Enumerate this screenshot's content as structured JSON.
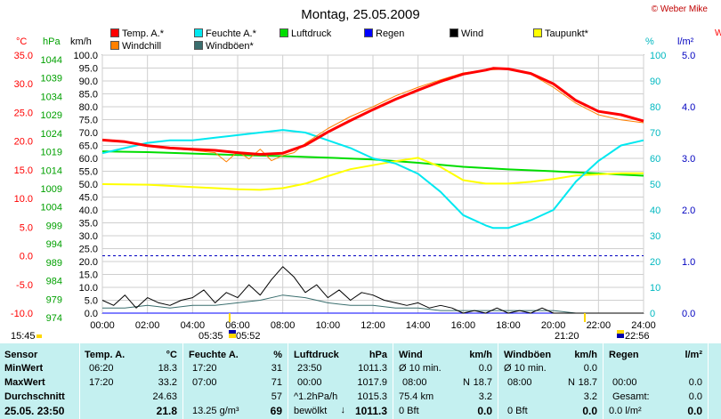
{
  "title": "Montag, 25.05.2009",
  "copyright": "© Weber Mike",
  "top_right_fragment": "W",
  "axis_units": {
    "temp": "°C",
    "pressure": "hPa",
    "wind": "km/h",
    "humidity": "%",
    "rain": "l/m²"
  },
  "legend": [
    {
      "label": "Temp. A.*",
      "color": "#ff0000"
    },
    {
      "label": "Feuchte A.*",
      "color": "#00e8f0"
    },
    {
      "label": "Luftdruck",
      "color": "#00dd00"
    },
    {
      "label": "Regen",
      "color": "#0000ff"
    },
    {
      "label": "Wind",
      "color": "#000000"
    },
    {
      "label": "Taupunkt*",
      "color": "#ffff00"
    },
    {
      "label": "Windchill",
      "color": "#ff8000"
    },
    {
      "label": "Windböen*",
      "color": "#3a6e6e"
    }
  ],
  "chart_data": {
    "type": "line",
    "title": "Montag, 25.05.2009",
    "x_unit": "time",
    "x_ticks": [
      "00:00",
      "02:00",
      "04:00",
      "06:00",
      "08:00",
      "10:00",
      "12:00",
      "14:00",
      "16:00",
      "18:00",
      "20:00",
      "22:00",
      "24:00"
    ],
    "y_axes": {
      "temp": {
        "unit": "°C",
        "range": [
          -10,
          35
        ],
        "ticks": [
          "35.0",
          "30.0",
          "25.0",
          "20.0",
          "15.0",
          "10.0",
          "5.0",
          "0.0",
          "-5.0",
          "-10.0"
        ]
      },
      "pressure": {
        "unit": "hPa",
        "range": [
          974,
          1044
        ],
        "ticks": [
          "1044",
          "1039",
          "1034",
          "1029",
          "1024",
          "1019",
          "1014",
          "1009",
          "1004",
          "999",
          "994",
          "989",
          "984",
          "979",
          "974"
        ]
      },
      "wind": {
        "unit": "km/h",
        "range": [
          0,
          100
        ],
        "ticks": [
          "100.0",
          "95.0",
          "90.0",
          "85.0",
          "80.0",
          "75.0",
          "70.0",
          "65.0",
          "60.0",
          "55.0",
          "50.0",
          "45.0",
          "40.0",
          "35.0",
          "30.0",
          "25.0",
          "20.0",
          "15.0",
          "10.0",
          "5.0",
          "0.0"
        ]
      },
      "humidity": {
        "unit": "%",
        "range": [
          0,
          100
        ],
        "ticks": [
          "100",
          "90",
          "80",
          "70",
          "60",
          "50",
          "40",
          "30",
          "20",
          "10",
          "0"
        ]
      },
      "rain": {
        "unit": "l/m²",
        "range": [
          0,
          5
        ],
        "ticks": [
          "5.0",
          "4.0",
          "3.0",
          "2.0",
          "1.0",
          "0.0"
        ]
      }
    },
    "grid": true,
    "series": [
      {
        "name": "Temp. A.*",
        "axis": "temp",
        "color": "#ff0000",
        "x": [
          0,
          1,
          2,
          3,
          4,
          5,
          6,
          7,
          8,
          9,
          10,
          11,
          12,
          13,
          14,
          15,
          16,
          17,
          17.33,
          18,
          19,
          20,
          21,
          22,
          23,
          24
        ],
        "y": [
          20.2,
          19.9,
          19.2,
          18.8,
          18.6,
          18.4,
          18.0,
          17.7,
          17.9,
          19.3,
          21.6,
          23.6,
          25.5,
          27.3,
          28.9,
          30.4,
          31.7,
          32.4,
          32.7,
          32.6,
          31.8,
          30.0,
          27.1,
          25.2,
          24.6,
          23.5
        ]
      },
      {
        "name": "Windchill",
        "axis": "temp",
        "color": "#ff8000",
        "x": [
          0,
          1,
          2,
          3,
          4,
          5,
          5.5,
          6,
          6.5,
          7,
          7.5,
          8,
          8.5,
          9,
          10,
          11,
          12,
          13,
          14,
          15,
          16,
          17,
          18,
          19,
          20,
          21,
          22,
          23,
          24
        ],
        "y": [
          20.1,
          19.8,
          19.1,
          18.7,
          18.4,
          18.0,
          16.4,
          18.2,
          16.9,
          18.6,
          16.6,
          17.5,
          18.0,
          19.6,
          22.2,
          24.3,
          26.0,
          27.9,
          29.4,
          30.7,
          31.9,
          32.4,
          32.6,
          31.7,
          29.4,
          26.6,
          24.6,
          23.7,
          23.2
        ]
      },
      {
        "name": "Feuchte A.*",
        "axis": "humidity",
        "color": "#00e8f0",
        "x": [
          0,
          1,
          2,
          3,
          4,
          5,
          6,
          7,
          8,
          9,
          10,
          11,
          12,
          13,
          14,
          15,
          16,
          17,
          17.33,
          18,
          19,
          20,
          21,
          22,
          23,
          24
        ],
        "y": [
          62,
          64,
          66,
          67,
          67,
          68,
          69,
          70,
          71,
          70,
          67,
          64,
          60,
          58,
          54,
          47,
          38,
          34,
          33,
          33,
          36,
          40,
          51,
          59,
          65,
          67
        ]
      },
      {
        "name": "Luftdruck",
        "axis": "pressure",
        "color": "#00dd00",
        "x": [
          0,
          2,
          4,
          6,
          8,
          10,
          12,
          14,
          16,
          18,
          20,
          22,
          24
        ],
        "y": [
          1017.9,
          1017.7,
          1017.3,
          1016.9,
          1016.6,
          1016.2,
          1015.7,
          1014.8,
          1013.7,
          1013.0,
          1012.5,
          1011.9,
          1011.3
        ]
      },
      {
        "name": "Taupunkt*",
        "axis": "temp",
        "color": "#ffff00",
        "x": [
          0,
          2,
          4,
          6,
          7,
          8,
          9,
          10,
          11,
          12,
          13,
          14,
          15,
          16,
          17,
          18,
          19,
          20,
          21,
          22,
          23,
          24
        ],
        "y": [
          12.5,
          12.4,
          12.0,
          11.6,
          11.5,
          11.8,
          12.6,
          13.9,
          15.1,
          15.8,
          16.5,
          17.1,
          15.5,
          13.2,
          12.6,
          12.6,
          12.9,
          13.4,
          14.0,
          14.2,
          14.4,
          14.4
        ]
      },
      {
        "name": "Wind",
        "axis": "wind",
        "color": "#000000",
        "x": [
          0,
          0.5,
          1,
          1.5,
          2,
          2.5,
          3,
          3.5,
          4,
          4.5,
          5,
          5.5,
          6,
          6.5,
          7,
          7.5,
          8,
          8.5,
          9,
          9.5,
          10,
          10.5,
          11,
          11.5,
          12,
          12.5,
          13,
          13.5,
          14,
          14.5,
          15,
          15.5,
          16,
          16.5,
          17,
          17.5,
          18,
          18.5,
          19,
          19.5,
          20,
          20.5,
          21,
          21.5,
          22,
          22.5,
          23,
          23.5,
          24
        ],
        "y": [
          5,
          3,
          7,
          2,
          6,
          4,
          3,
          5,
          6,
          9,
          4,
          8,
          6,
          11,
          7,
          13,
          18,
          14,
          8,
          11,
          6,
          9,
          5,
          8,
          7,
          5,
          4,
          3,
          4,
          2,
          3,
          2,
          0,
          1,
          0,
          2,
          0,
          1,
          0,
          2,
          0,
          0,
          0,
          0,
          0,
          0,
          0,
          0,
          0
        ]
      },
      {
        "name": "Windböen*",
        "axis": "wind",
        "color": "#3a6e6e",
        "x": [
          0,
          1,
          2,
          3,
          4,
          5,
          6,
          7,
          8,
          9,
          10,
          11,
          12,
          13,
          14,
          15,
          16,
          17,
          18,
          19,
          20,
          21,
          22,
          23,
          24
        ],
        "y": [
          2,
          2,
          3,
          2,
          3,
          3,
          4,
          5,
          7,
          6,
          4,
          3,
          3,
          2,
          2,
          1,
          1,
          1,
          1,
          1,
          1,
          0,
          0,
          0,
          0
        ]
      },
      {
        "name": "Regen",
        "axis": "rain",
        "color": "#0000ff",
        "x": [
          0,
          24
        ],
        "y": [
          0,
          0
        ]
      }
    ]
  },
  "time_markers": {
    "left_time": "15:45",
    "sunrise": "05:35",
    "sunrise2": "05:52",
    "sunset": "21:20",
    "sunset2": "22:56"
  },
  "summary": {
    "sensor": {
      "header": "Sensor",
      "rows": [
        "MinWert",
        "MaxWert",
        "Durchschnitt",
        "25.05. 23:50"
      ]
    },
    "temp": {
      "header": "Temp. A.",
      "unit": "°C",
      "rows": [
        {
          "time": "06:20",
          "value": "18.3"
        },
        {
          "time": "17:20",
          "value": "33.2"
        },
        {
          "time": "",
          "value": "24.63"
        },
        {
          "time": "",
          "value": "21.8"
        }
      ]
    },
    "humidity": {
      "header": "Feuchte A.",
      "unit": "%",
      "rows": [
        {
          "time": "17:20",
          "value": "31"
        },
        {
          "time": "07:00",
          "value": "71"
        },
        {
          "time": "",
          "value": "57"
        },
        {
          "time": "13.25 g/m³",
          "value": "69"
        }
      ]
    },
    "pressure": {
      "header": "Luftdruck",
      "unit": "hPa",
      "rows": [
        {
          "time": "23:50",
          "value": "1011.3"
        },
        {
          "time": "00:00",
          "value": "1017.9"
        },
        {
          "time": "^1.2hPa/h",
          "value": "1015.3"
        },
        {
          "time": "bewölkt",
          "value": "1011.3"
        }
      ]
    },
    "wind": {
      "header": "Wind",
      "unit": "km/h",
      "rows": [
        {
          "time": "Ø 10 min.",
          "dir": "",
          "value": "0.0"
        },
        {
          "time": "08:00",
          "dir": "N",
          "value": "18.7"
        },
        {
          "time": "75.4 km",
          "dir": "",
          "value": "3.2"
        },
        {
          "time": "0 Bft",
          "dir": "",
          "value": "0.0"
        }
      ]
    },
    "gusts": {
      "header": "Windböen",
      "unit": "km/h",
      "rows": [
        {
          "time": "Ø 10 min.",
          "dir": "",
          "value": "0.0"
        },
        {
          "time": "08:00",
          "dir": "N",
          "value": "18.7"
        },
        {
          "time": "",
          "dir": "",
          "value": "3.2"
        },
        {
          "time": "0 Bft",
          "dir": "",
          "value": "0.0"
        }
      ]
    },
    "rain": {
      "header": "Regen",
      "unit": "l/m²",
      "rows": [
        {
          "time": "",
          "value": ""
        },
        {
          "time": "00:00",
          "value": "0.0"
        },
        {
          "time": "Gesamt:",
          "value": "0.0"
        },
        {
          "time": "0.0 l/m²",
          "value": "0.0"
        }
      ]
    }
  }
}
